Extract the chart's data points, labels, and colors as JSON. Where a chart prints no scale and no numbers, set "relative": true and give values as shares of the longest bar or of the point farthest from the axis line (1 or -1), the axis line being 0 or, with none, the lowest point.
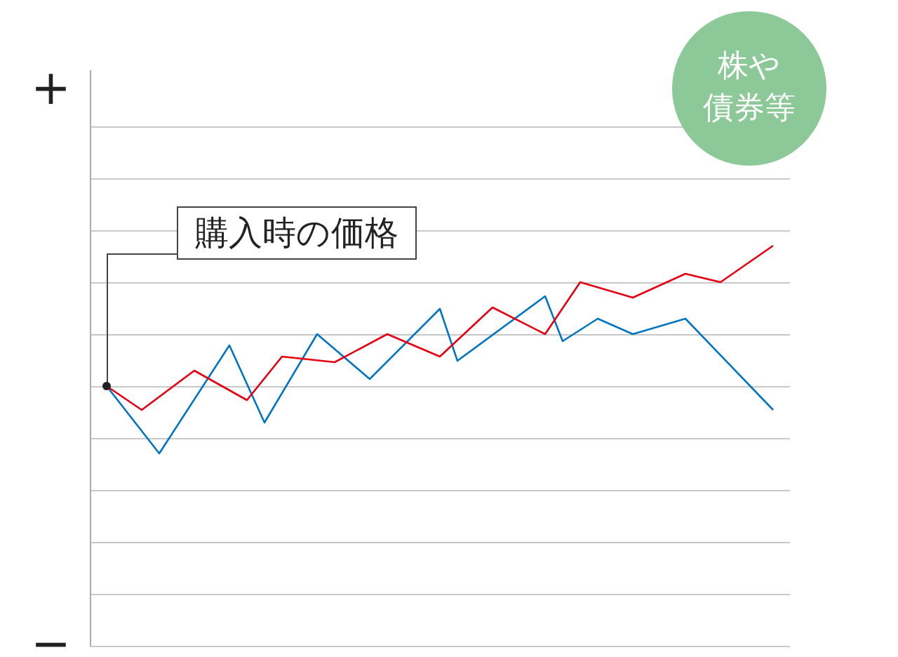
{
  "chart_data": {
    "type": "line",
    "relative": true,
    "grid": "y",
    "tick_labels": false,
    "legend": false,
    "marker": "none",
    "line_style": "solid",
    "categories": [
      null,
      null,
      null,
      null,
      null,
      null,
      null,
      null,
      null,
      null,
      null,
      null,
      null,
      null,
      null,
      null,
      null,
      null,
      null,
      null,
      null,
      null,
      null,
      null,
      null,
      null,
      null,
      null,
      null,
      null,
      null,
      null,
      null,
      null,
      null,
      null,
      null,
      null,
      null
    ],
    "series": [
      {
        "color": "#e60012",
        "values": [
          0,
          null,
          -0.17,
          null,
          null,
          0.11,
          null,
          null,
          -0.1,
          null,
          0.21,
          null,
          null,
          0.17,
          null,
          null,
          0.37,
          null,
          null,
          0.21,
          null,
          null,
          0.56,
          null,
          null,
          0.37,
          null,
          0.74,
          null,
          null,
          0.63,
          null,
          null,
          0.8,
          null,
          0.74,
          null,
          null,
          1
        ]
      },
      {
        "color": "#0075c2",
        "values": [
          0,
          null,
          null,
          -0.48,
          null,
          null,
          null,
          0.29,
          null,
          -0.26,
          null,
          null,
          0.37,
          null,
          null,
          0.05,
          null,
          null,
          null,
          0.55,
          0.18,
          null,
          null,
          null,
          null,
          0.64,
          0.32,
          null,
          0.48,
          null,
          0.37,
          null,
          null,
          0.48,
          null,
          null,
          null,
          null,
          -0.17
        ]
      }
    ],
    "annotations": [
      "+",
      "−",
      "株や債券等",
      "購入時の価格"
    ]
  }
}
